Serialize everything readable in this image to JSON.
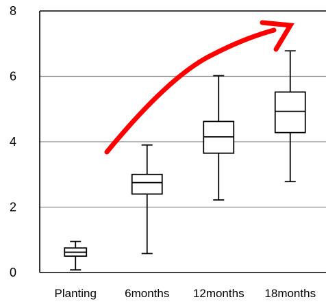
{
  "chart_data": {
    "type": "box",
    "title": "",
    "xlabel": "",
    "ylabel": "",
    "ylim": [
      0,
      8
    ],
    "yticks": [
      0,
      2,
      4,
      6,
      8
    ],
    "grid": true,
    "categories": [
      "Planting",
      "6months",
      "12months",
      "18months"
    ],
    "boxes": [
      {
        "min": 0.08,
        "q1": 0.5,
        "median": 0.62,
        "q3": 0.75,
        "max": 0.95
      },
      {
        "min": 0.58,
        "q1": 2.4,
        "median": 2.75,
        "q3": 3.0,
        "max": 3.9
      },
      {
        "min": 2.22,
        "q1": 3.65,
        "median": 4.15,
        "q3": 4.62,
        "max": 6.02
      },
      {
        "min": 2.78,
        "q1": 4.28,
        "median": 4.93,
        "q3": 5.52,
        "max": 6.78
      }
    ],
    "annotation": {
      "type": "arrow",
      "color": "#ff0000",
      "meaning": "increasing trend"
    }
  }
}
